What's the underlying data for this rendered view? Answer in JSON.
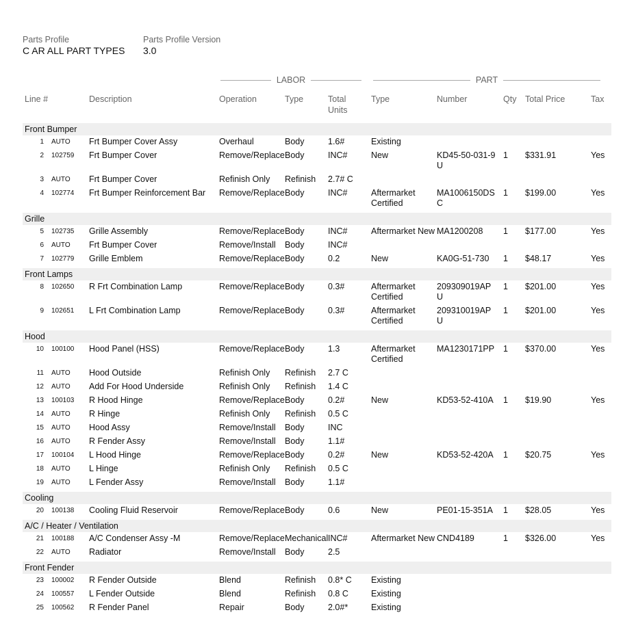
{
  "profile": {
    "label": "Parts Profile",
    "value": "C AR ALL PART TYPES"
  },
  "version": {
    "label": "Parts Profile Version",
    "value": "3.0"
  },
  "sections": {
    "labor": "LABOR",
    "part": "PART"
  },
  "columns": {
    "line": "Line #",
    "description": "Description",
    "operation": "Operation",
    "labor_type": "Type",
    "total_units": "Total Units",
    "part_type": "Type",
    "number": "Number",
    "qty": "Qty",
    "total_price": "Total Price",
    "tax": "Tax"
  },
  "groups": [
    {
      "name": "Front Bumper",
      "rows": [
        [
          "1",
          "AUTO",
          "Frt Bumper Cover Assy",
          "Overhaul",
          "Body",
          "1.6#",
          "Existing",
          "",
          "",
          "",
          ""
        ],
        [
          "2",
          "102759",
          "Frt Bumper Cover",
          "Remove/Replace",
          "Body",
          "INC#",
          "New",
          "KD45-50-031-9U",
          "1",
          "$331.91",
          "Yes"
        ],
        [
          "3",
          "AUTO",
          "Frt Bumper Cover",
          "Refinish Only",
          "Refinish",
          "2.7# C",
          "",
          "",
          "",
          "",
          ""
        ],
        [
          "4",
          "102774",
          "Frt Bumper Reinforcement Bar",
          "Remove/Replace",
          "Body",
          "INC#",
          "Aftermarket Certified",
          "MA1006150DSC",
          "1",
          "$199.00",
          "Yes"
        ]
      ]
    },
    {
      "name": "Grille",
      "rows": [
        [
          "5",
          "102735",
          "Grille Assembly",
          "Remove/Replace",
          "Body",
          "INC#",
          "Aftermarket New",
          "MA1200208",
          "1",
          "$177.00",
          "Yes"
        ],
        [
          "6",
          "AUTO",
          "Frt Bumper Cover",
          "Remove/Install",
          "Body",
          "INC#",
          "",
          "",
          "",
          "",
          ""
        ],
        [
          "7",
          "102779",
          "Grille Emblem",
          "Remove/Replace",
          "Body",
          "0.2",
          "New",
          "KA0G-51-730",
          "1",
          "$48.17",
          "Yes"
        ]
      ]
    },
    {
      "name": "Front Lamps",
      "rows": [
        [
          "8",
          "102650",
          "R Frt Combination Lamp",
          "Remove/Replace",
          "Body",
          "0.3#",
          "Aftermarket Certified",
          "209309019APU",
          "1",
          "$201.00",
          "Yes"
        ],
        [
          "9",
          "102651",
          "L Frt Combination Lamp",
          "Remove/Replace",
          "Body",
          "0.3#",
          "Aftermarket Certified",
          "209310019APU",
          "1",
          "$201.00",
          "Yes"
        ]
      ]
    },
    {
      "name": "Hood",
      "rows": [
        [
          "10",
          "100100",
          "Hood Panel (HSS)",
          "Remove/Replace",
          "Body",
          "1.3",
          "Aftermarket Certified",
          "MA1230171PP",
          "1",
          "$370.00",
          "Yes"
        ],
        [
          "11",
          "AUTO",
          "Hood Outside",
          "Refinish Only",
          "Refinish",
          "2.7 C",
          "",
          "",
          "",
          "",
          ""
        ],
        [
          "12",
          "AUTO",
          "Add For Hood Underside",
          "Refinish Only",
          "Refinish",
          "1.4 C",
          "",
          "",
          "",
          "",
          ""
        ],
        [
          "13",
          "100103",
          "R Hood Hinge",
          "Remove/Replace",
          "Body",
          "0.2#",
          "New",
          "KD53-52-410A",
          "1",
          "$19.90",
          "Yes"
        ],
        [
          "14",
          "AUTO",
          "R Hinge",
          "Refinish Only",
          "Refinish",
          "0.5 C",
          "",
          "",
          "",
          "",
          ""
        ],
        [
          "15",
          "AUTO",
          "Hood Assy",
          "Remove/Install",
          "Body",
          "INC",
          "",
          "",
          "",
          "",
          ""
        ],
        [
          "16",
          "AUTO",
          "R Fender Assy",
          "Remove/Install",
          "Body",
          "1.1#",
          "",
          "",
          "",
          "",
          ""
        ],
        [
          "17",
          "100104",
          "L Hood Hinge",
          "Remove/Replace",
          "Body",
          "0.2#",
          "New",
          "KD53-52-420A",
          "1",
          "$20.75",
          "Yes"
        ],
        [
          "18",
          "AUTO",
          "L Hinge",
          "Refinish Only",
          "Refinish",
          "0.5 C",
          "",
          "",
          "",
          "",
          ""
        ],
        [
          "19",
          "AUTO",
          "L Fender Assy",
          "Remove/Install",
          "Body",
          "1.1#",
          "",
          "",
          "",
          "",
          ""
        ]
      ]
    },
    {
      "name": "Cooling",
      "rows": [
        [
          "20",
          "100138",
          "Cooling Fluid Reservoir",
          "Remove/Replace",
          "Body",
          "0.6",
          "New",
          "PE01-15-351A",
          "1",
          "$28.05",
          "Yes"
        ]
      ]
    },
    {
      "name": "A/C / Heater / Ventilation",
      "rows": [
        [
          "21",
          "100188",
          "A/C Condenser Assy -M",
          "Remove/Replace",
          "Mechanical",
          "INC#",
          "Aftermarket New",
          "CND4189",
          "1",
          "$326.00",
          "Yes"
        ],
        [
          "22",
          "AUTO",
          "Radiator",
          "Remove/Install",
          "Body",
          "2.5",
          "",
          "",
          "",
          "",
          ""
        ]
      ]
    },
    {
      "name": "Front Fender",
      "rows": [
        [
          "23",
          "100002",
          "R Fender Outside",
          "Blend",
          "Refinish",
          "0.8* C",
          "Existing",
          "",
          "",
          "",
          ""
        ],
        [
          "24",
          "100557",
          "L Fender Outside",
          "Blend",
          "Refinish",
          "0.8 C",
          "Existing",
          "",
          "",
          "",
          ""
        ],
        [
          "25",
          "100562",
          "R Fender Panel",
          "Repair",
          "Body",
          "2.0#*",
          "Existing",
          "",
          "",
          "",
          ""
        ]
      ]
    }
  ]
}
